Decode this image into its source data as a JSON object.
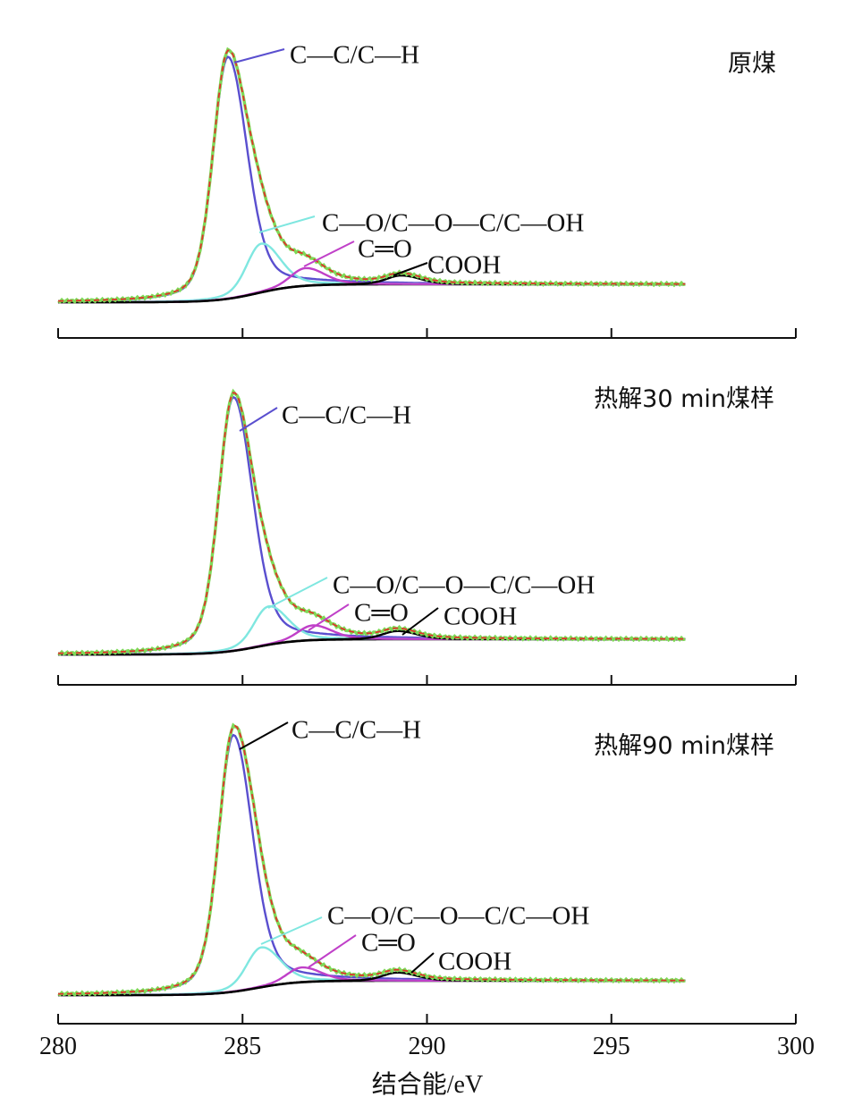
{
  "chart_data": {
    "type": "line",
    "xlabel": "结合能/eV",
    "xlim": [
      280,
      300
    ],
    "x_ticks": [
      280,
      285,
      290,
      295,
      300
    ],
    "x_data_range": [
      280,
      297
    ],
    "components": [
      "C—C/C—H",
      "C—O/C—O—C/C—OH",
      "C═O",
      "COOH"
    ],
    "colors": {
      "raw": "#7ed957",
      "fit": "#e0322b",
      "C—C/C—H": "#5a4fcf",
      "C—O/C—O—C/C—OH": "#7fe7e0",
      "C═O": "#c040c8",
      "COOH": "#000000",
      "background": "#000000"
    },
    "panels": [
      {
        "name": "原煤",
        "peaks": [
          {
            "label": "C—C/C—H",
            "center": 284.6,
            "height": 0.82
          },
          {
            "label": "C—O/C—O—C/C—OH",
            "center": 285.5,
            "height": 0.165
          },
          {
            "label": "C═O",
            "center": 286.7,
            "height": 0.06
          },
          {
            "label": "COOH",
            "center": 289.3,
            "height": 0.03
          }
        ]
      },
      {
        "name": "热解30 min煤样",
        "peaks": [
          {
            "label": "C—C/C—H",
            "center": 284.75,
            "height": 0.86
          },
          {
            "label": "C—O/C—O—C/C—OH",
            "center": 285.7,
            "height": 0.13
          },
          {
            "label": "C═O",
            "center": 286.9,
            "height": 0.05
          },
          {
            "label": "COOH",
            "center": 289.2,
            "height": 0.028
          }
        ]
      },
      {
        "name": "热解90 min煤样",
        "peaks": [
          {
            "label": "C—C/C—H",
            "center": 284.75,
            "height": 0.87
          },
          {
            "label": "C—O/C—O—C/C—OH",
            "center": 285.5,
            "height": 0.135
          },
          {
            "label": "C═O",
            "center": 286.6,
            "height": 0.05
          },
          {
            "label": "COOH",
            "center": 289.2,
            "height": 0.028
          }
        ]
      }
    ]
  }
}
